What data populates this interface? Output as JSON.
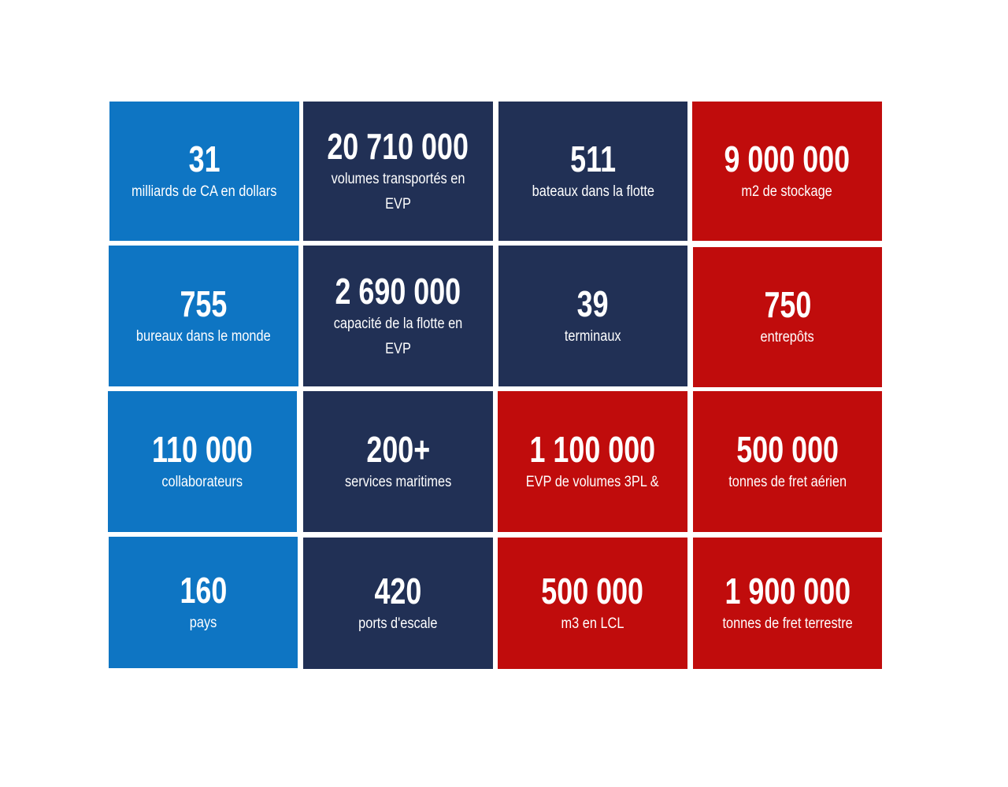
{
  "colors": {
    "blue": "#0e75c3",
    "navy": "#213055",
    "red": "#c00c0c"
  },
  "tiles": [
    {
      "value": "31",
      "label": "milliards de CA en dollars",
      "color": "blue"
    },
    {
      "value": "20 710 000",
      "label": "volumes transportés en EVP",
      "color": "navy"
    },
    {
      "value": "511",
      "label": "bateaux dans la flotte",
      "color": "navy"
    },
    {
      "value": "9 000 000",
      "label": "m2 de stockage",
      "color": "red"
    },
    {
      "value": "755",
      "label": "bureaux dans le monde",
      "color": "blue"
    },
    {
      "value": "2 690 000",
      "label": "capacité de la flotte en EVP",
      "color": "navy"
    },
    {
      "value": "39",
      "label": "terminaux",
      "color": "navy"
    },
    {
      "value": "750",
      "label": "entrepôts",
      "color": "red"
    },
    {
      "value": "110 000",
      "label": "collaborateurs",
      "color": "blue"
    },
    {
      "value": "200+",
      "label": "services maritimes",
      "color": "navy"
    },
    {
      "value": "1 100 000",
      "label": "EVP de volumes 3PL &",
      "color": "red"
    },
    {
      "value": "500 000",
      "label": "tonnes de fret aérien",
      "color": "red"
    },
    {
      "value": "160",
      "label": "pays",
      "color": "blue"
    },
    {
      "value": "420",
      "label": "ports d'escale",
      "color": "navy"
    },
    {
      "value": "500 000",
      "label": "m3 en LCL",
      "color": "red"
    },
    {
      "value": "1 900 000",
      "label": "tonnes de fret terrestre",
      "color": "red"
    }
  ]
}
